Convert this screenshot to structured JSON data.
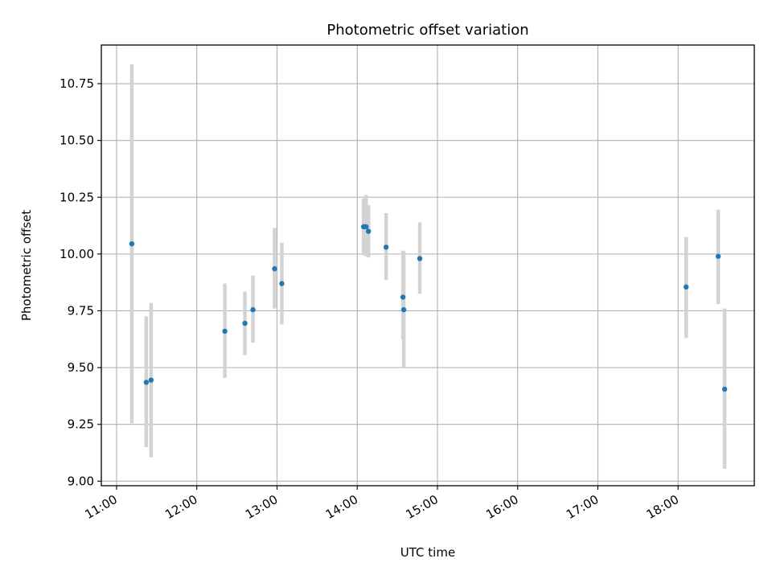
{
  "chart_data": {
    "type": "scatter",
    "title": "Photometric offset variation",
    "xlabel": "UTC time",
    "ylabel": "Photometric offset",
    "x_unit": "UTC hour (decimal)",
    "xlim": [
      10.81,
      18.95
    ],
    "ylim": [
      8.98,
      10.92
    ],
    "grid": true,
    "x_ticks": [
      {
        "value": 11,
        "label": "11:00"
      },
      {
        "value": 12,
        "label": "12:00"
      },
      {
        "value": 13,
        "label": "13:00"
      },
      {
        "value": 14,
        "label": "14:00"
      },
      {
        "value": 15,
        "label": "15:00"
      },
      {
        "value": 16,
        "label": "16:00"
      },
      {
        "value": 17,
        "label": "17:00"
      },
      {
        "value": 18,
        "label": "18:00"
      }
    ],
    "y_ticks": [
      {
        "value": 9.0,
        "label": "9.00"
      },
      {
        "value": 9.25,
        "label": "9.25"
      },
      {
        "value": 9.5,
        "label": "9.50"
      },
      {
        "value": 9.75,
        "label": "9.75"
      },
      {
        "value": 10.0,
        "label": "10.00"
      },
      {
        "value": 10.25,
        "label": "10.25"
      },
      {
        "value": 10.5,
        "label": "10.50"
      },
      {
        "value": 10.75,
        "label": "10.75"
      }
    ],
    "colors": {
      "marker": "#1f77b4",
      "errorbar": "#d3d3d3",
      "grid": "#b0b0b0"
    },
    "points": [
      {
        "x": 11.19,
        "y": 10.045,
        "ylo": 9.255,
        "yhi": 10.835
      },
      {
        "x": 11.37,
        "y": 9.435,
        "ylo": 9.15,
        "yhi": 9.725
      },
      {
        "x": 11.43,
        "y": 9.445,
        "ylo": 9.105,
        "yhi": 9.785
      },
      {
        "x": 12.35,
        "y": 9.66,
        "ylo": 9.455,
        "yhi": 9.87
      },
      {
        "x": 12.6,
        "y": 9.695,
        "ylo": 9.555,
        "yhi": 9.835
      },
      {
        "x": 12.7,
        "y": 9.755,
        "ylo": 9.61,
        "yhi": 9.905
      },
      {
        "x": 12.97,
        "y": 9.935,
        "ylo": 9.76,
        "yhi": 10.115
      },
      {
        "x": 13.06,
        "y": 9.87,
        "ylo": 9.69,
        "yhi": 10.05
      },
      {
        "x": 14.08,
        "y": 10.12,
        "ylo": 9.995,
        "yhi": 10.245
      },
      {
        "x": 14.11,
        "y": 10.12,
        "ylo": 9.99,
        "yhi": 10.26
      },
      {
        "x": 14.14,
        "y": 10.1,
        "ylo": 9.985,
        "yhi": 10.215
      },
      {
        "x": 14.36,
        "y": 10.03,
        "ylo": 9.885,
        "yhi": 10.18
      },
      {
        "x": 14.57,
        "y": 9.81,
        "ylo": 9.625,
        "yhi": 10.015
      },
      {
        "x": 14.58,
        "y": 9.755,
        "ylo": 9.5,
        "yhi": 10.01
      },
      {
        "x": 14.78,
        "y": 9.98,
        "ylo": 9.825,
        "yhi": 10.14
      },
      {
        "x": 18.1,
        "y": 9.855,
        "ylo": 9.63,
        "yhi": 10.075
      },
      {
        "x": 18.5,
        "y": 9.99,
        "ylo": 9.78,
        "yhi": 10.195
      },
      {
        "x": 18.58,
        "y": 9.405,
        "ylo": 9.055,
        "yhi": 9.76
      }
    ]
  }
}
